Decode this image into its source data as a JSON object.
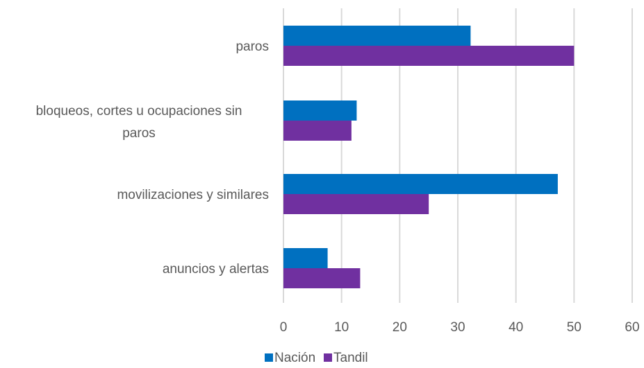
{
  "chart_data": {
    "type": "bar",
    "orientation": "horizontal",
    "categories": [
      "paros",
      "bloqueos, cortes u ocupaciones sin paros",
      "movilizaciones y similares",
      "anuncios y alertas"
    ],
    "series": [
      {
        "name": "Nación",
        "color": "#0070C0",
        "values": [
          32.2,
          12.6,
          47.2,
          7.6
        ]
      },
      {
        "name": "Tandil",
        "color": "#7030A0",
        "values": [
          50.0,
          11.7,
          25.0,
          13.2
        ]
      }
    ],
    "xlim": [
      0,
      60
    ],
    "ticks": [
      "0",
      "10",
      "20",
      "30",
      "40",
      "50",
      "60"
    ],
    "grid": true,
    "legend": "bottom",
    "title": "",
    "xlabel": "",
    "ylabel": ""
  }
}
